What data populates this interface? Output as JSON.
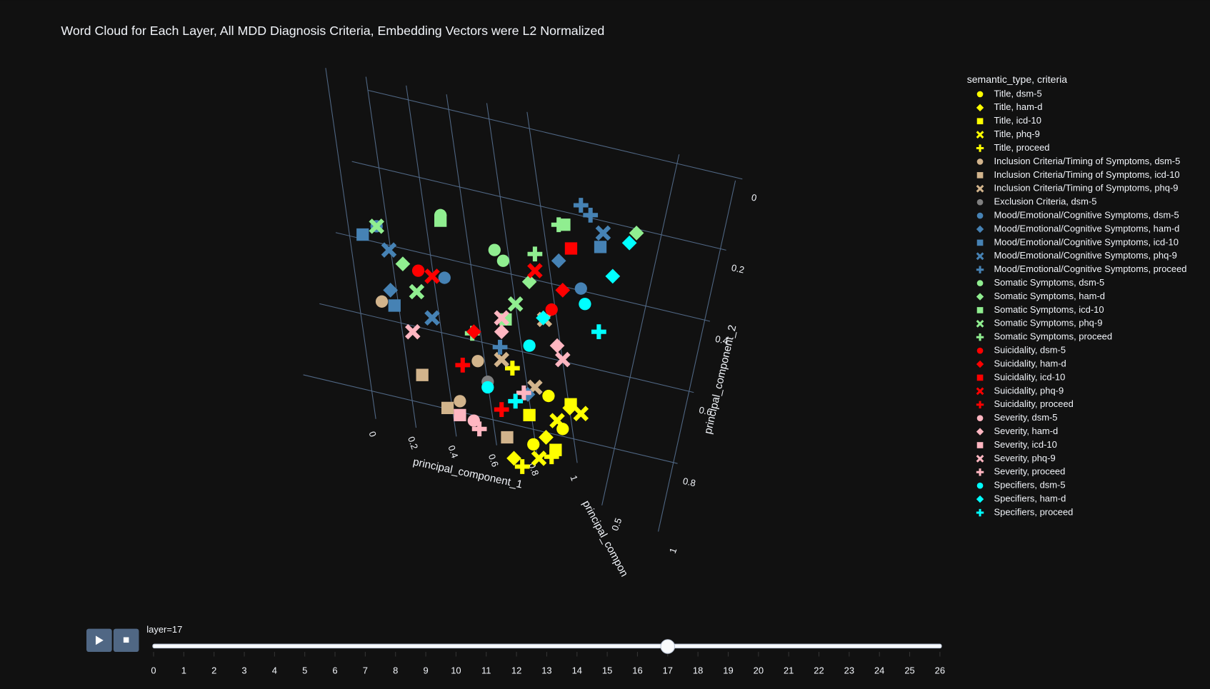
{
  "chart_data": {
    "type": "scatter3d",
    "title": "Word Cloud for Each Layer, All MDD Diagnosis Criteria, Embedding Vectors were L2 Normalized",
    "legend_title": "semantic_type, criteria",
    "xlabel": "principal_component_1",
    "ylabel": "principal_component_2",
    "zlabel": "principal_compon",
    "xticks": [
      0,
      0.2,
      0.4,
      0.6,
      0.8,
      1
    ],
    "yticks": [
      0,
      0.2,
      0.4,
      0.6,
      0.8
    ],
    "zticks": [
      0.5,
      1
    ],
    "grid": true,
    "series": [
      {
        "name": "Title, dsm-5",
        "color": "#ffff00",
        "symbol": "circle",
        "x": [
          0.68,
          0.72,
          0.62
        ],
        "y": [
          0.72,
          0.85,
          0.9
        ],
        "z": [
          0.3,
          0.5,
          0.4
        ]
      },
      {
        "name": "Title, ham-d",
        "color": "#ffff00",
        "symbol": "diamond",
        "x": [
          0.55,
          0.74,
          0.66
        ],
        "y": [
          0.95,
          0.78,
          0.88
        ],
        "z": [
          0.4,
          0.6,
          0.5
        ]
      },
      {
        "name": "Title, icd-10",
        "color": "#ffff00",
        "symbol": "square",
        "x": [
          0.6,
          0.76,
          0.7
        ],
        "y": [
          0.8,
          0.75,
          0.92
        ],
        "z": [
          0.5,
          0.3,
          0.4
        ]
      },
      {
        "name": "Title, phq-9",
        "color": "#ffff00",
        "symbol": "x",
        "x": [
          0.7,
          0.64,
          0.78
        ],
        "y": [
          0.82,
          0.95,
          0.8
        ],
        "z": [
          0.5,
          0.4,
          0.6
        ]
      },
      {
        "name": "Title, proceed",
        "color": "#ffff00",
        "symbol": "cross",
        "x": [
          0.58,
          0.68,
          0.55
        ],
        "y": [
          0.98,
          0.95,
          0.62
        ],
        "z": [
          0.4,
          0.5,
          0.3
        ]
      },
      {
        "name": "Inclusion Criteria/Timing of Symptoms, dsm-5",
        "color": "#d2b48c",
        "symbol": "circle",
        "x": [
          0.35,
          0.42,
          0.08
        ],
        "y": [
          0.75,
          0.6,
          0.38
        ],
        "z": [
          0.5,
          0.4,
          0.3
        ]
      },
      {
        "name": "Inclusion Criteria/Timing of Symptoms, icd-10",
        "color": "#d2b48c",
        "symbol": "square",
        "x": [
          0.22,
          0.52,
          0.3
        ],
        "y": [
          0.65,
          0.88,
          0.78
        ],
        "z": [
          0.4,
          0.5,
          0.6
        ]
      },
      {
        "name": "Inclusion Criteria/Timing of Symptoms, phq-9",
        "color": "#d2b48c",
        "symbol": "x",
        "x": [
          0.5,
          0.62,
          0.66
        ],
        "y": [
          0.6,
          0.7,
          0.45
        ],
        "z": [
          0.5,
          0.5,
          0.4
        ]
      },
      {
        "name": "Exclusion Criteria, dsm-5",
        "color": "#808080",
        "symbol": "circle",
        "x": [
          0.45
        ],
        "y": [
          0.68
        ],
        "z": [
          0.5
        ]
      },
      {
        "name": "Mood/Emotional/Cognitive Symptoms, dsm-5",
        "color": "#4682b4",
        "symbol": "circle",
        "x": [
          0.05,
          0.3,
          0.78
        ],
        "y": [
          0.12,
          0.3,
          0.35
        ],
        "z": [
          0.5,
          0.4,
          0.6
        ]
      },
      {
        "name": "Mood/Emotional/Cognitive Symptoms, ham-d",
        "color": "#4682b4",
        "symbol": "diamond",
        "x": [
          0.1,
          0.7,
          0.6
        ],
        "y": [
          0.35,
          0.25,
          0.72
        ],
        "z": [
          0.5,
          0.6,
          0.4
        ]
      },
      {
        "name": "Mood/Emotional/Cognitive Symptoms, icd-10",
        "color": "#4682b4",
        "symbol": "square",
        "x": [
          0.0,
          0.12,
          0.85
        ],
        "y": [
          0.15,
          0.4,
          0.2
        ],
        "z": [
          0.5,
          0.4,
          0.6
        ]
      },
      {
        "name": "Mood/Emotional/Cognitive Symptoms, phq-9",
        "color": "#4682b4",
        "symbol": "x",
        "x": [
          0.1,
          0.25,
          0.86
        ],
        "y": [
          0.2,
          0.45,
          0.15
        ],
        "z": [
          0.4,
          0.5,
          0.6
        ]
      },
      {
        "name": "Mood/Emotional/Cognitive Symptoms, proceed",
        "color": "#4682b4",
        "symbol": "cross",
        "x": [
          0.78,
          0.82,
          0.5
        ],
        "y": [
          0.05,
          0.08,
          0.55
        ],
        "z": [
          0.6,
          0.5,
          0.4
        ]
      },
      {
        "name": "Somatic Symptoms, dsm-5",
        "color": "#90ee90",
        "symbol": "circle",
        "x": [
          0.28,
          0.48,
          0.5
        ],
        "y": [
          0.08,
          0.2,
          0.25
        ],
        "z": [
          0.5,
          0.4,
          0.6
        ]
      },
      {
        "name": "Somatic Symptoms, ham-d",
        "color": "#90ee90",
        "symbol": "diamond",
        "x": [
          0.15,
          0.6,
          0.98
        ],
        "y": [
          0.25,
          0.32,
          0.15
        ],
        "z": [
          0.4,
          0.5,
          0.6
        ]
      },
      {
        "name": "Somatic Symptoms, icd-10",
        "color": "#90ee90",
        "symbol": "square",
        "x": [
          0.28,
          0.72,
          0.52
        ],
        "y": [
          0.1,
          0.12,
          0.45
        ],
        "z": [
          0.5,
          0.6,
          0.4
        ]
      },
      {
        "name": "Somatic Symptoms, phq-9",
        "color": "#90ee90",
        "symbol": "x",
        "x": [
          0.05,
          0.2,
          0.55
        ],
        "y": [
          0.12,
          0.35,
          0.4
        ],
        "z": [
          0.5,
          0.4,
          0.5
        ]
      },
      {
        "name": "Somatic Symptoms, proceed",
        "color": "#90ee90",
        "symbol": "cross",
        "x": [
          0.62,
          0.7,
          0.4
        ],
        "y": [
          0.22,
          0.12,
          0.5
        ],
        "z": [
          0.5,
          0.6,
          0.4
        ]
      },
      {
        "name": "Suicidality, dsm-5",
        "color": "#ff0000",
        "symbol": "circle",
        "x": [
          0.2,
          0.68
        ],
        "y": [
          0.28,
          0.42
        ],
        "z": [
          0.5,
          0.5
        ]
      },
      {
        "name": "Suicidality, ham-d",
        "color": "#ff0000",
        "symbol": "diamond",
        "x": [
          0.72,
          0.4
        ],
        "y": [
          0.35,
          0.5
        ],
        "z": [
          0.5,
          0.5
        ]
      },
      {
        "name": "Suicidality, icd-10",
        "color": "#ff0000",
        "symbol": "square",
        "x": [
          0.75
        ],
        "y": [
          0.2
        ],
        "z": [
          0.5
        ]
      },
      {
        "name": "Suicidality, phq-9",
        "color": "#ff0000",
        "symbol": "x",
        "x": [
          0.25,
          0.62
        ],
        "y": [
          0.3,
          0.28
        ],
        "z": [
          0.5,
          0.5
        ]
      },
      {
        "name": "Suicidality, proceed",
        "color": "#ff0000",
        "symbol": "cross",
        "x": [
          0.36,
          0.5
        ],
        "y": [
          0.62,
          0.78
        ],
        "z": [
          0.5,
          0.5
        ]
      },
      {
        "name": "Severity, dsm-5",
        "color": "#ffb6c1",
        "symbol": "circle",
        "x": [
          0.4
        ],
        "y": [
          0.82
        ],
        "z": [
          0.5
        ]
      },
      {
        "name": "Severity, ham-d",
        "color": "#ffb6c1",
        "symbol": "diamond",
        "x": [
          0.5,
          0.7
        ],
        "y": [
          0.5,
          0.55
        ],
        "z": [
          0.5,
          0.5
        ]
      },
      {
        "name": "Severity, icd-10",
        "color": "#ffb6c1",
        "symbol": "square",
        "x": [
          0.35
        ],
        "y": [
          0.8
        ],
        "z": [
          0.5
        ]
      },
      {
        "name": "Severity, phq-9",
        "color": "#ffb6c1",
        "symbol": "x",
        "x": [
          0.18,
          0.5,
          0.72
        ],
        "y": [
          0.5,
          0.45,
          0.6
        ],
        "z": [
          0.5,
          0.5,
          0.5
        ]
      },
      {
        "name": "Severity, proceed",
        "color": "#ffb6c1",
        "symbol": "cross",
        "x": [
          0.42,
          0.58
        ],
        "y": [
          0.85,
          0.72
        ],
        "z": [
          0.5,
          0.5
        ]
      },
      {
        "name": "Specifiers, dsm-5",
        "color": "#00ffff",
        "symbol": "circle",
        "x": [
          0.45,
          0.8,
          0.6
        ],
        "y": [
          0.7,
          0.4,
          0.55
        ],
        "z": [
          0.5,
          0.5,
          0.5
        ]
      },
      {
        "name": "Specifiers, ham-d",
        "color": "#00ffff",
        "symbol": "diamond",
        "x": [
          0.9,
          0.65,
          0.96
        ],
        "y": [
          0.3,
          0.45,
          0.18
        ],
        "z": [
          0.5,
          0.5,
          0.5
        ]
      },
      {
        "name": "Specifiers, proceed",
        "color": "#00ffff",
        "symbol": "cross",
        "x": [
          0.55,
          0.85
        ],
        "y": [
          0.75,
          0.5
        ],
        "z": [
          0.5,
          0.5
        ]
      }
    ],
    "slider": {
      "current_label": "layer=17",
      "steps": [
        0,
        1,
        2,
        3,
        4,
        5,
        6,
        7,
        8,
        9,
        10,
        11,
        12,
        13,
        14,
        15,
        16,
        17,
        18,
        19,
        20,
        21,
        22,
        23,
        24,
        25,
        26
      ],
      "active": 17
    }
  }
}
